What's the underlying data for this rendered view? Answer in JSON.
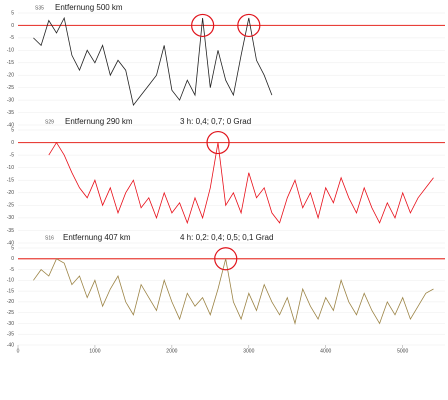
{
  "chart_data": [
    {
      "type": "line",
      "label": "S35",
      "title": "Entfernung 500 km",
      "x": [
        200,
        300,
        400,
        500,
        600,
        700,
        800,
        900,
        1000,
        1100,
        1200,
        1300,
        1400,
        1500,
        1600,
        1700,
        1800,
        1900,
        2000,
        2100,
        2200,
        2300,
        2400,
        2500,
        2600,
        2700,
        2800,
        2900,
        3000,
        3100,
        3200,
        3300
      ],
      "series": [
        {
          "color": "#222222",
          "values": [
            -5,
            -8,
            2,
            -3,
            3,
            -12,
            -18,
            -10,
            -15,
            -8,
            -20,
            -14,
            -18,
            -32,
            -28,
            -24,
            -20,
            -8,
            -26,
            -30,
            -22,
            -28,
            3,
            -25,
            -10,
            -22,
            -28,
            -12,
            3,
            -14,
            -20,
            -28
          ]
        }
      ],
      "xlim": [
        0,
        5550
      ],
      "ylim": [
        -40,
        5
      ],
      "yticks": [
        5,
        0,
        -5,
        -10,
        -15,
        -20,
        -25,
        -30,
        -35,
        -40
      ],
      "grid": true,
      "reference_line": 0,
      "reference_color": "#e8403a",
      "highlights": [
        2400,
        3000
      ]
    },
    {
      "type": "line",
      "label": "S29",
      "title": "Entfernung 290 km",
      "subtitle": "3 h: 0,4; 0,7; 0 Grad",
      "x": [
        400,
        500,
        600,
        700,
        800,
        900,
        1000,
        1100,
        1200,
        1300,
        1400,
        1500,
        1600,
        1700,
        1800,
        1900,
        2000,
        2100,
        2200,
        2300,
        2400,
        2500,
        2600,
        2700,
        2800,
        2900,
        3000,
        3100,
        3200,
        3300,
        3400,
        3500,
        3600,
        3700,
        3800,
        3900,
        4000,
        4100,
        4200,
        4300,
        4400,
        4500,
        4600,
        4700,
        4800,
        4900,
        5000,
        5100,
        5200,
        5300,
        5400
      ],
      "series": [
        {
          "color": "#e8101a",
          "values": [
            -5,
            0,
            -5,
            -12,
            -18,
            -22,
            -15,
            -25,
            -18,
            -28,
            -20,
            -15,
            -26,
            -22,
            -30,
            -20,
            -28,
            -24,
            -32,
            -22,
            -30,
            -18,
            0,
            -25,
            -20,
            -28,
            -12,
            -22,
            -18,
            -28,
            -32,
            -22,
            -15,
            -26,
            -20,
            -30,
            -18,
            -24,
            -14,
            -22,
            -28,
            -18,
            -26,
            -32,
            -24,
            -30,
            -20,
            -28,
            -22,
            -18,
            -14
          ]
        }
      ],
      "xlim": [
        0,
        5550
      ],
      "ylim": [
        -40,
        5
      ],
      "yticks": [
        5,
        0,
        -5,
        -10,
        -15,
        -20,
        -25,
        -30,
        -35,
        -40
      ],
      "grid": true,
      "reference_line": 0,
      "reference_color": "#e8403a",
      "highlights": [
        2600
      ]
    },
    {
      "type": "line",
      "label": "S16",
      "title": "Entfernung 407 km",
      "subtitle": "4 h: 0,2: 0,4; 0,5; 0,1 Grad",
      "x": [
        200,
        300,
        400,
        500,
        600,
        700,
        800,
        900,
        1000,
        1100,
        1200,
        1300,
        1400,
        1500,
        1600,
        1700,
        1800,
        1900,
        2000,
        2100,
        2200,
        2300,
        2400,
        2500,
        2600,
        2700,
        2800,
        2900,
        3000,
        3100,
        3200,
        3300,
        3400,
        3500,
        3600,
        3700,
        3800,
        3900,
        4000,
        4100,
        4200,
        4300,
        4400,
        4500,
        4600,
        4700,
        4800,
        4900,
        5000,
        5100,
        5200,
        5300,
        5400
      ],
      "series": [
        {
          "color": "#9c8446",
          "values": [
            -10,
            -5,
            -8,
            0,
            -2,
            -12,
            -8,
            -18,
            -10,
            -22,
            -14,
            -8,
            -20,
            -26,
            -12,
            -18,
            -24,
            -10,
            -20,
            -28,
            -16,
            -22,
            -18,
            -26,
            -14,
            0,
            -20,
            -28,
            -16,
            -24,
            -12,
            -20,
            -26,
            -18,
            -30,
            -14,
            -22,
            -28,
            -18,
            -24,
            -10,
            -20,
            -26,
            -16,
            -24,
            -30,
            -20,
            -26,
            -18,
            -28,
            -22,
            -16,
            -14
          ]
        }
      ],
      "xlim": [
        0,
        5550
      ],
      "ylim": [
        -40,
        5
      ],
      "yticks": [
        5,
        0,
        -5,
        -10,
        -15,
        -20,
        -25,
        -30,
        -35,
        -40
      ],
      "xticks": [
        0,
        1000,
        2000,
        3000,
        4000,
        5000
      ],
      "grid": true,
      "reference_line": 0,
      "reference_color": "#e8403a",
      "highlights": [
        2700
      ]
    }
  ]
}
